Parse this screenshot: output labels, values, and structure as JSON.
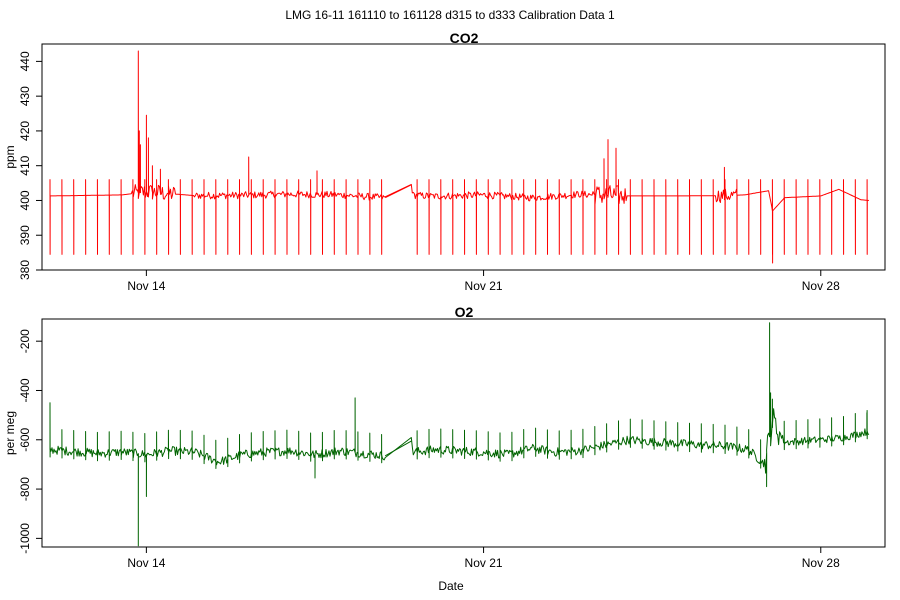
{
  "chart_data": [
    {
      "type": "line",
      "title": "CO2",
      "ylabel": "ppm",
      "xlabel": "",
      "color": "#ff0000",
      "xlim": [
        "2016-11-11T20:00",
        "2016-11-29T08:00"
      ],
      "ylim": [
        380,
        445
      ],
      "grid": false,
      "x_ticks": [
        "2016-11-14",
        "2016-11-21",
        "2016-11-28"
      ],
      "x_tick_labels": [
        "Nov 14",
        "Nov 21",
        "Nov 28"
      ],
      "y_ticks": [
        380,
        390,
        400,
        410,
        420,
        430,
        440
      ],
      "y_tick_labels": [
        "380",
        "390",
        "400",
        "410",
        "420",
        "430",
        "440"
      ],
      "baseline": [
        [
          "2016-11-12T00:00",
          401.3
        ],
        [
          "2016-11-13T12:00",
          401.6
        ],
        [
          "2016-11-14T00:00",
          402.5
        ],
        [
          "2016-11-15T00:00",
          401.4
        ],
        [
          "2016-11-16T00:00",
          401.5
        ],
        [
          "2016-11-17T00:00",
          401.8
        ],
        [
          "2016-11-18T00:00",
          401.6
        ],
        [
          "2016-11-18T23:00",
          400.8
        ],
        [
          "2016-11-19T12:00",
          404.5
        ],
        [
          "2016-11-19T13:00",
          401.5
        ],
        [
          "2016-11-20T00:00",
          401.2
        ],
        [
          "2016-11-21T00:00",
          401.6
        ],
        [
          "2016-11-22T00:00",
          400.8
        ],
        [
          "2016-11-23T00:00",
          401.8
        ],
        [
          "2016-11-24T00:00",
          401.3
        ],
        [
          "2016-11-25T00:00",
          401.3
        ],
        [
          "2016-11-26T00:00",
          401.4
        ],
        [
          "2016-11-26T10:00",
          401.6
        ],
        [
          "2016-11-26T22:00",
          402.8
        ],
        [
          "2016-11-27T00:00",
          397.0
        ],
        [
          "2016-11-27T06:00",
          400.8
        ],
        [
          "2016-11-28T00:00",
          401.3
        ],
        [
          "2016-11-28T09:00",
          403.2
        ],
        [
          "2016-11-28T20:00",
          400.2
        ],
        [
          "2016-11-29T00:00",
          400.0
        ]
      ],
      "calibration": {
        "start": "2016-11-12T00:00",
        "end": "2016-11-29T00:00",
        "interval_hours": 5.9,
        "gaps": [
          [
            "2016-11-18T23:00",
            "2016-11-19T12:00"
          ]
        ],
        "high": 406,
        "low": 384.5
      },
      "noise_segments": [
        [
          "2016-11-13T17:00",
          "2016-11-14T14:00",
          2.5
        ],
        [
          "2016-11-15T00:00",
          "2016-11-18T23:00",
          1.0
        ],
        [
          "2016-11-19T12:00",
          "2016-11-23T06:00",
          1.0
        ],
        [
          "2016-11-23T06:00",
          "2016-11-23T23:00",
          3.0
        ],
        [
          "2016-11-25T20:00",
          "2016-11-26T06:00",
          2.0
        ]
      ],
      "spikes": [
        [
          "2016-11-13T20:00",
          443
        ],
        [
          "2016-11-13T20:30",
          420
        ],
        [
          "2016-11-13T21:00",
          416
        ],
        [
          "2016-11-14T00:00",
          424.5
        ],
        [
          "2016-11-14T01:00",
          418
        ],
        [
          "2016-11-14T03:00",
          410
        ],
        [
          "2016-11-14T07:00",
          409
        ],
        [
          "2016-11-16T03:00",
          412.5
        ],
        [
          "2016-11-17T13:00",
          408.5
        ],
        [
          "2016-11-23T14:00",
          417.5
        ],
        [
          "2016-11-23T12:00",
          412
        ],
        [
          "2016-11-23T18:00",
          415
        ],
        [
          "2016-11-26T00:00",
          409.5
        ],
        [
          "2016-11-27T00:00",
          382
        ]
      ]
    },
    {
      "type": "line",
      "title": "O2",
      "ylabel": "per meg",
      "xlabel": "Date",
      "color": "#006400",
      "xlim": [
        "2016-11-11T20:00",
        "2016-11-29T08:00"
      ],
      "ylim": [
        -1035,
        -110
      ],
      "grid": false,
      "x_ticks": [
        "2016-11-14",
        "2016-11-21",
        "2016-11-28"
      ],
      "x_tick_labels": [
        "Nov 14",
        "Nov 21",
        "Nov 28"
      ],
      "y_ticks": [
        -1000,
        -800,
        -600,
        -400,
        -200
      ],
      "y_tick_labels": [
        "-1000",
        "-800",
        "-600",
        "-400",
        "-200"
      ],
      "baseline": [
        [
          "2016-11-12T00:00",
          -640
        ],
        [
          "2016-11-13T00:00",
          -655
        ],
        [
          "2016-11-13T12:00",
          -650
        ],
        [
          "2016-11-14T00:00",
          -660
        ],
        [
          "2016-11-14T12:00",
          -645
        ],
        [
          "2016-11-15T00:00",
          -650
        ],
        [
          "2016-11-15T12:00",
          -690
        ],
        [
          "2016-11-16T00:00",
          -660
        ],
        [
          "2016-11-16T12:00",
          -650
        ],
        [
          "2016-11-17T00:00",
          -645
        ],
        [
          "2016-11-17T12:00",
          -660
        ],
        [
          "2016-11-18T00:00",
          -645
        ],
        [
          "2016-11-18T18:00",
          -660
        ],
        [
          "2016-11-18T23:00",
          -665
        ],
        [
          "2016-11-19T12:00",
          -605
        ],
        [
          "2016-11-19T13:00",
          -650
        ],
        [
          "2016-11-20T00:00",
          -640
        ],
        [
          "2016-11-21T00:00",
          -650
        ],
        [
          "2016-11-21T12:00",
          -660
        ],
        [
          "2016-11-22T00:00",
          -635
        ],
        [
          "2016-11-22T12:00",
          -650
        ],
        [
          "2016-11-23T00:00",
          -645
        ],
        [
          "2016-11-24T00:00",
          -600
        ],
        [
          "2016-11-25T00:00",
          -615
        ],
        [
          "2016-11-26T00:00",
          -625
        ],
        [
          "2016-11-26T12:00",
          -640
        ],
        [
          "2016-11-26T20:00",
          -700
        ],
        [
          "2016-11-27T00:00",
          -520
        ],
        [
          "2016-11-27T06:00",
          -610
        ],
        [
          "2016-11-28T00:00",
          -600
        ],
        [
          "2016-11-28T12:00",
          -590
        ],
        [
          "2016-11-29T00:00",
          -565
        ]
      ],
      "calibration": {
        "start": "2016-11-12T00:00",
        "end": "2016-11-29T00:00",
        "interval_hours": 5.9,
        "gaps": [
          [
            "2016-11-18T23:00",
            "2016-11-19T12:00"
          ]
        ],
        "high_offset": 85,
        "low_offset": -30
      },
      "noise_segments": [
        [
          "2016-11-12T00:00",
          "2016-11-18T23:00",
          18
        ],
        [
          "2016-11-19T12:00",
          "2016-11-26T20:00",
          18
        ],
        [
          "2016-11-26T20:00",
          "2016-11-27T04:00",
          60
        ],
        [
          "2016-11-27T04:00",
          "2016-11-29T00:00",
          15
        ]
      ],
      "spikes": [
        [
          "2016-11-12T00:00",
          -450
        ],
        [
          "2016-11-13T20:00",
          -1030
        ],
        [
          "2016-11-14T00:00",
          -830
        ],
        [
          "2016-11-17T12:00",
          -755
        ],
        [
          "2016-11-18T08:00",
          -430
        ],
        [
          "2016-11-26T21:00",
          -790
        ],
        [
          "2016-11-26T22:30",
          -125
        ],
        [
          "2016-11-26T23:00",
          -410
        ],
        [
          "2016-11-28T23:00",
          -490
        ]
      ]
    }
  ],
  "figure": {
    "title": "LMG   16-11    161110 to 161128    d315 to d333   Calibration Data 1"
  }
}
